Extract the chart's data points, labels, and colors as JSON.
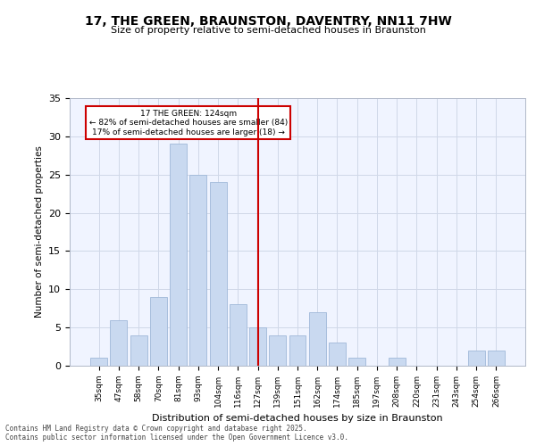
{
  "title1": "17, THE GREEN, BRAUNSTON, DAVENTRY, NN11 7HW",
  "title2": "Size of property relative to semi-detached houses in Braunston",
  "xlabel": "Distribution of semi-detached houses by size in Braunston",
  "ylabel": "Number of semi-detached properties",
  "categories": [
    "35sqm",
    "47sqm",
    "58sqm",
    "70sqm",
    "81sqm",
    "93sqm",
    "104sqm",
    "116sqm",
    "127sqm",
    "139sqm",
    "151sqm",
    "162sqm",
    "174sqm",
    "185sqm",
    "197sqm",
    "208sqm",
    "220sqm",
    "231sqm",
    "243sqm",
    "254sqm",
    "266sqm"
  ],
  "values": [
    1,
    6,
    4,
    9,
    29,
    25,
    24,
    8,
    5,
    4,
    4,
    7,
    3,
    1,
    0,
    1,
    0,
    0,
    0,
    2,
    2
  ],
  "bar_color": "#c9d9f0",
  "bar_edge_color": "#a0b8d8",
  "vline_x": 8,
  "vline_color": "#cc0000",
  "vline_label": "127sqm",
  "property_size": 124,
  "pct_smaller": 82,
  "n_smaller": 84,
  "pct_larger": 17,
  "n_larger": 18,
  "annotation_label": "17 THE GREEN: 124sqm",
  "annotation_line1": "← 82% of semi-detached houses are smaller (84)",
  "annotation_line2": "17% of semi-detached houses are larger (18) →",
  "ylim": [
    0,
    35
  ],
  "yticks": [
    0,
    5,
    10,
    15,
    20,
    25,
    30,
    35
  ],
  "footer": "Contains HM Land Registry data © Crown copyright and database right 2025.\nContains public sector information licensed under the Open Government Licence v3.0.",
  "background_color": "#f0f4ff",
  "grid_color": "#d0d8e8"
}
